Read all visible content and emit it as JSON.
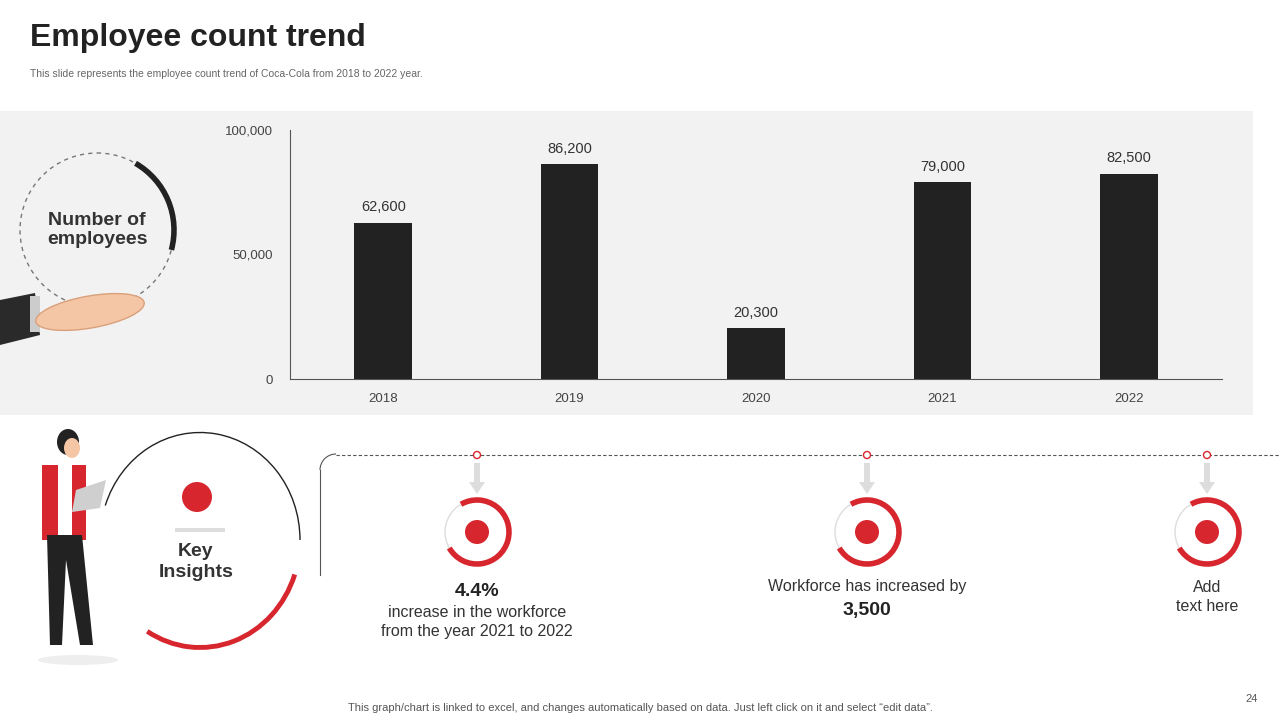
{
  "chart_data": {
    "type": "bar",
    "categories": [
      "2018",
      "2019",
      "2020",
      "2021",
      "2022"
    ],
    "values": [
      62600,
      86200,
      20300,
      79000,
      82500
    ],
    "value_labels": [
      "62,600",
      "86,200",
      "20,300",
      "79,000",
      "82,500"
    ],
    "color": "#222222",
    "ylim": [
      0,
      100000
    ],
    "yticks": [
      0,
      {
        "value": 50000,
        "label": "50,000"
      },
      {
        "value": 100000,
        "label": "100,000"
      }
    ],
    "grid": false,
    "data_labels": true
  },
  "slide": {
    "title": "Employee count trend",
    "subtitle": "This slide represents the employee count trend of Coca-Cola from 2018 to 2022 year.",
    "badge": "Number of employees",
    "insights_heading": "Key Insights",
    "insights": [
      {
        "value": "4.4%",
        "text": "increase in the workforce from the year 2021 to 2022"
      },
      {
        "text": "Workforce has increased by",
        "value": "3,500"
      },
      {
        "text": "Add text here"
      }
    ],
    "footer": "This graph/chart is linked to excel, and changes automatically based on data. Just left click on it and select “edit data”.",
    "page": "24"
  }
}
